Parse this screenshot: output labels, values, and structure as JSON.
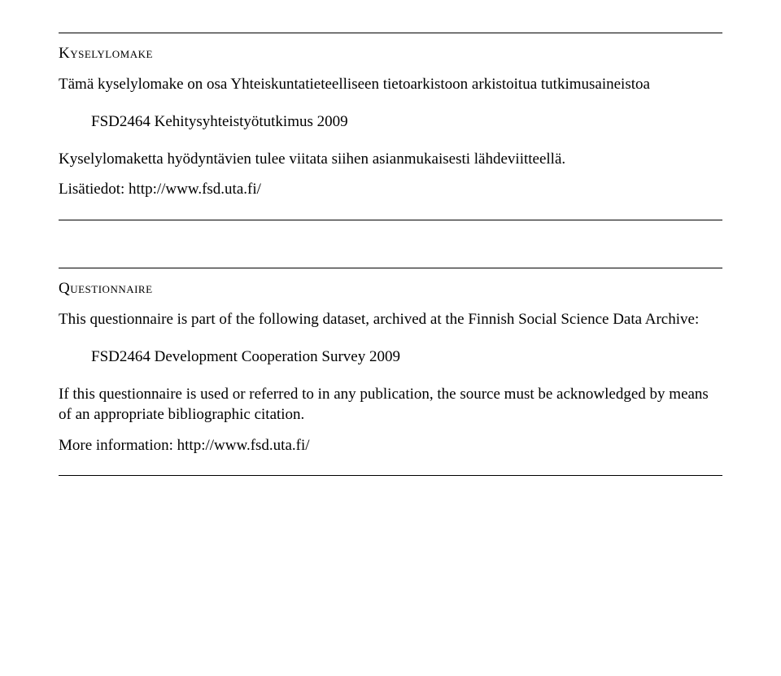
{
  "section1": {
    "heading": "Kyselylomake",
    "intro": "Tämä kyselylomake on osa Yhteiskuntatieteelliseen tietoarkistoon arkistoitua tutkimusaineistoa",
    "dataset": "FSD2464 Kehitysyhteistyötutkimus 2009",
    "usage": "Kyselylomaketta hyödyntävien tulee viitata siihen asianmukaisesti lähdeviitteellä.",
    "moreinfo": "Lisätiedot: http://www.fsd.uta.fi/"
  },
  "section2": {
    "heading": "Questionnaire",
    "intro": "This questionnaire is part of the following dataset, archived at the Finnish Social Science Data Archive:",
    "dataset": "FSD2464 Development Cooperation Survey 2009",
    "usage": "If this questionnaire is used or referred to in any publication, the source must be acknowledged by means of an appropriate bibliographic citation.",
    "moreinfo": "More information: http://www.fsd.uta.fi/"
  },
  "colors": {
    "text": "#000000",
    "background": "#ffffff",
    "rule": "#000000"
  },
  "typography": {
    "font_family": "Times New Roman",
    "heading_fontsize_pt": 14,
    "body_fontsize_pt": 14
  }
}
